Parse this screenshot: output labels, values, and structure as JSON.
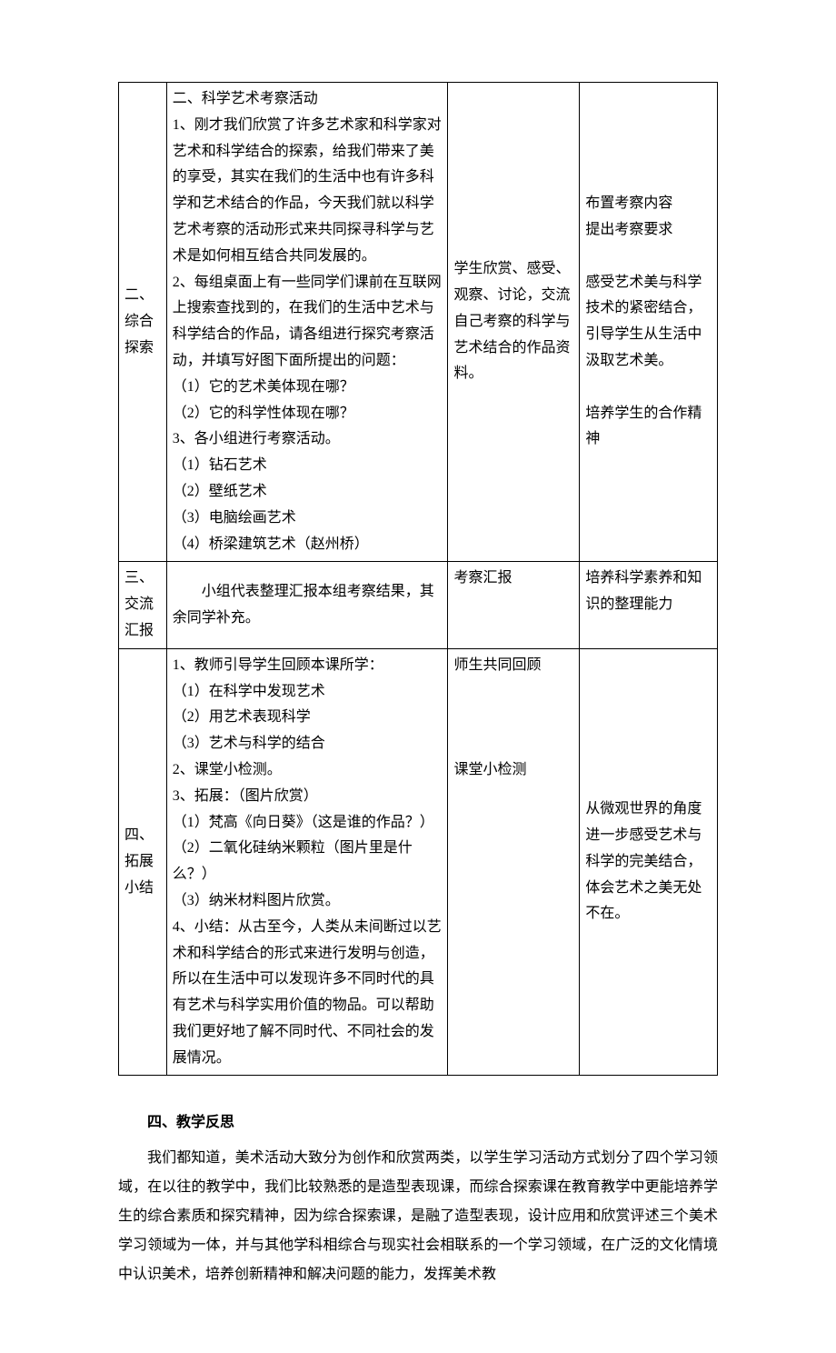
{
  "table": {
    "columns": [
      {
        "width_pct": 8
      },
      {
        "width_pct": 47
      },
      {
        "width_pct": 22
      },
      {
        "width_pct": 23
      }
    ],
    "rows": [
      {
        "label": "二、\n综合\n探索",
        "teacher": "二、科学艺术考察活动\n1、刚才我们欣赏了许多艺术家和科学家对艺术和科学结合的探索，给我们带来了美的享受，其实在我们的生活中也有许多科学和艺术结合的作品，今天我们就以科学艺术考察的活动形式来共同探寻科学与艺术是如何相互结合共同发展的。\n2、每组桌面上有一些同学们课前在互联网上搜索查找到的，在我们的生活中艺术与科学结合的作品，请各组进行探究考察活动，并填写好图下面所提出的问题：\n（1）它的艺术美体现在哪？\n（2）它的科学性体现在哪？\n3、各小组进行考察活动。\n（1）钻石艺术\n（2）壁纸艺术\n（3）电脑绘画艺术\n（4）桥梁建筑艺术（赵州桥）",
        "student": "学生欣赏、感受、观察、讨论，交流自己考察的科学与艺术结合的作品资料。",
        "intent": "布置考察内容\n提出考察要求\n\n感受艺术美与科学技术的紧密结合，引导学生从生活中汲取艺术美。\n\n培养学生的合作精神"
      },
      {
        "label": "三、\n交流\n汇报",
        "teacher": "　　小组代表整理汇报本组考察结果，其余同学补充。",
        "student": "考察汇报",
        "intent": "培养科学素养和知识的整理能力"
      },
      {
        "label": "四、\n拓展\n小结",
        "teacher": "1、教师引导学生回顾本课所学：\n（1）在科学中发现艺术\n（2）用艺术表现科学\n（3）艺术与科学的结合\n2、课堂小检测。\n3、拓展：（图片欣赏）\n（1）梵高《向日葵》（这是谁的作品？）\n（2）二氧化硅纳米颗粒（图片里是什么？）\n（3）纳米材料图片欣赏。\n4、小结：从古至今，人类从未间断过以艺术和科学结合的形式来进行发明与创造，所以在生活中可以发现许多不同时代的具有艺术与科学实用价值的物品。可以帮助我们更好地了解不同时代、不同社会的发展情况。",
        "student": "师生共同回顾\n\n\n\n课堂小检测",
        "intent": "从微观世界的角度进一步感受艺术与科学的完美结合，体会艺术之美无处不在。"
      }
    ]
  },
  "reflection": {
    "title": "四、教学反思",
    "paragraph": "我们都知道，美术活动大致分为创作和欣赏两类，以学生学习活动方式划分了四个学习领域，在以往的教学中，我们比较熟悉的是造型表现课，而综合探索课在教育教学中更能培养学生的综合素质和探究精神，因为综合探索课，是融了造型表现，设计应用和欣赏评述三个美术学习领域为一体，并与其他学科相综合与现实社会相联系的一个学习领域，在广泛的文化情境中认识美术，培养创新精神和解决问题的能力，发挥美术教"
  },
  "style": {
    "background_color": "#ffffff",
    "text_color": "#000000",
    "border_color": "#000000",
    "font_family": "SimSun",
    "body_font_size_pt": 16,
    "line_height_table": 1.8,
    "line_height_para": 2.0
  }
}
